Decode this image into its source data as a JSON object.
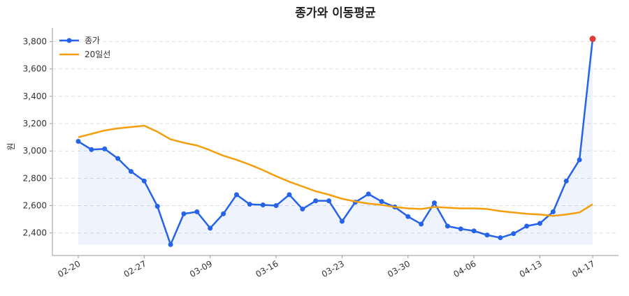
{
  "chart_data": {
    "type": "line",
    "title": "종가와 이동평균",
    "y_label": "원",
    "categories": [
      "02-20",
      null,
      null,
      null,
      null,
      "02-27",
      null,
      null,
      null,
      null,
      "03-09",
      null,
      null,
      null,
      null,
      "03-16",
      null,
      null,
      null,
      null,
      "03-23",
      null,
      null,
      null,
      null,
      "03-30",
      null,
      null,
      null,
      null,
      "04-06",
      null,
      null,
      null,
      null,
      "04-13",
      null,
      null,
      null,
      "04-17"
    ],
    "series": [
      {
        "name": "종가",
        "color": "#2563eb",
        "markers": true,
        "fill": true,
        "last_point_color": "#e03c3c",
        "values": [
          3070,
          3010,
          3015,
          2945,
          2850,
          2780,
          2595,
          2315,
          2540,
          2555,
          2435,
          2540,
          2680,
          2610,
          2605,
          2600,
          2680,
          2575,
          2635,
          2635,
          2485,
          2625,
          2685,
          2630,
          2590,
          2520,
          2465,
          2620,
          2450,
          2430,
          2415,
          2385,
          2365,
          2395,
          2450,
          2470,
          2555,
          2780,
          2935,
          3820
        ]
      },
      {
        "name": "20일선",
        "color": "#f59e0b",
        "markers": false,
        "fill": false,
        "values": [
          3100,
          3125,
          3150,
          3165,
          3175,
          3185,
          3140,
          3085,
          3060,
          3040,
          3005,
          2965,
          2935,
          2900,
          2860,
          2815,
          2775,
          2740,
          2705,
          2680,
          2650,
          2630,
          2615,
          2605,
          2590,
          2580,
          2575,
          2590,
          2585,
          2580,
          2580,
          2575,
          2560,
          2550,
          2540,
          2535,
          2525,
          2535,
          2550,
          2610
        ]
      }
    ],
    "ylim": [
      2235,
      3900
    ],
    "yticks": [
      {
        "value": 2400,
        "label": "2,400"
      },
      {
        "value": 2600,
        "label": "2,600"
      },
      {
        "value": 2800,
        "label": "2,800"
      },
      {
        "value": 3000,
        "label": "3,000"
      },
      {
        "value": 3200,
        "label": "3,200"
      },
      {
        "value": 3400,
        "label": "3,400"
      },
      {
        "value": 3600,
        "label": "3,600"
      },
      {
        "value": 3800,
        "label": "3,800"
      }
    ],
    "grid": true,
    "legend": "upper-left"
  }
}
